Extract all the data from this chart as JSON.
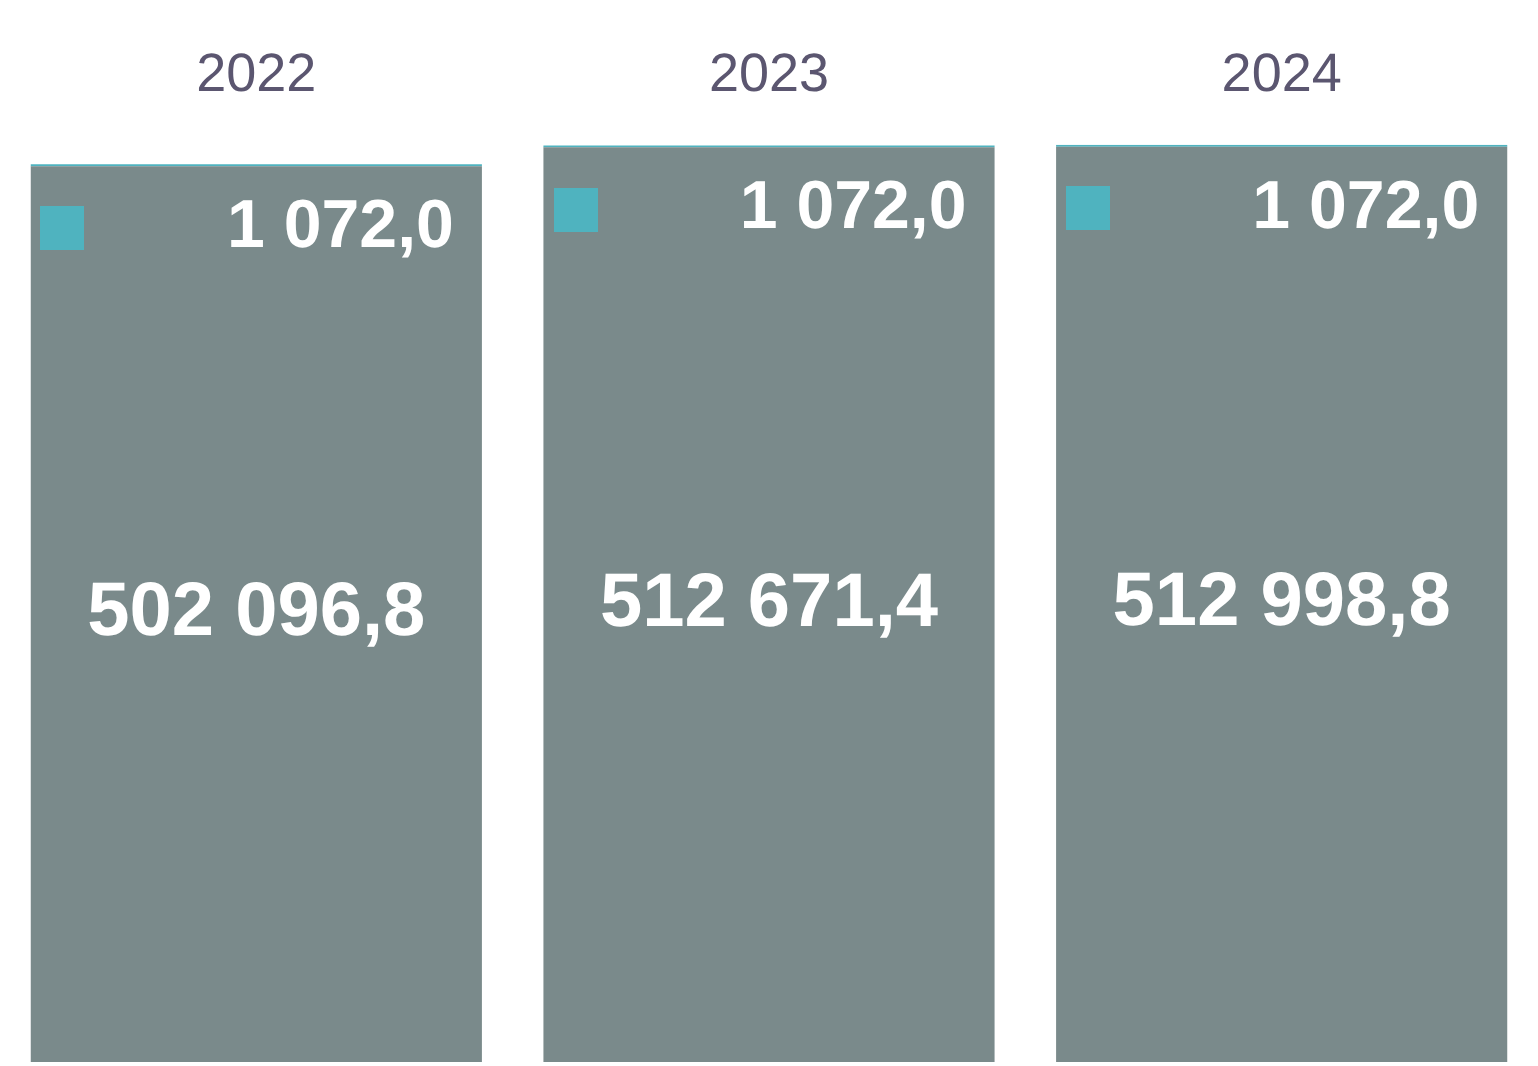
{
  "chart_data": {
    "type": "bar",
    "stacked": true,
    "categories": [
      "2022",
      "2023",
      "2024"
    ],
    "series": [
      {
        "color": "#7a8a8b",
        "values": [
          502096.8,
          512671.4,
          512998.8
        ],
        "value_labels": [
          "502 096,8",
          "512 671,4",
          "512 998,8"
        ]
      },
      {
        "color": "#4fb3bf",
        "values": [
          1072.0,
          1072.0,
          1072.0
        ],
        "value_labels": [
          "1 072,0",
          "1 072,0",
          "1 072,0"
        ]
      }
    ],
    "ylim": [
      0,
      514070.8
    ],
    "tick_labels": "x",
    "grid": false,
    "legend": false
  }
}
